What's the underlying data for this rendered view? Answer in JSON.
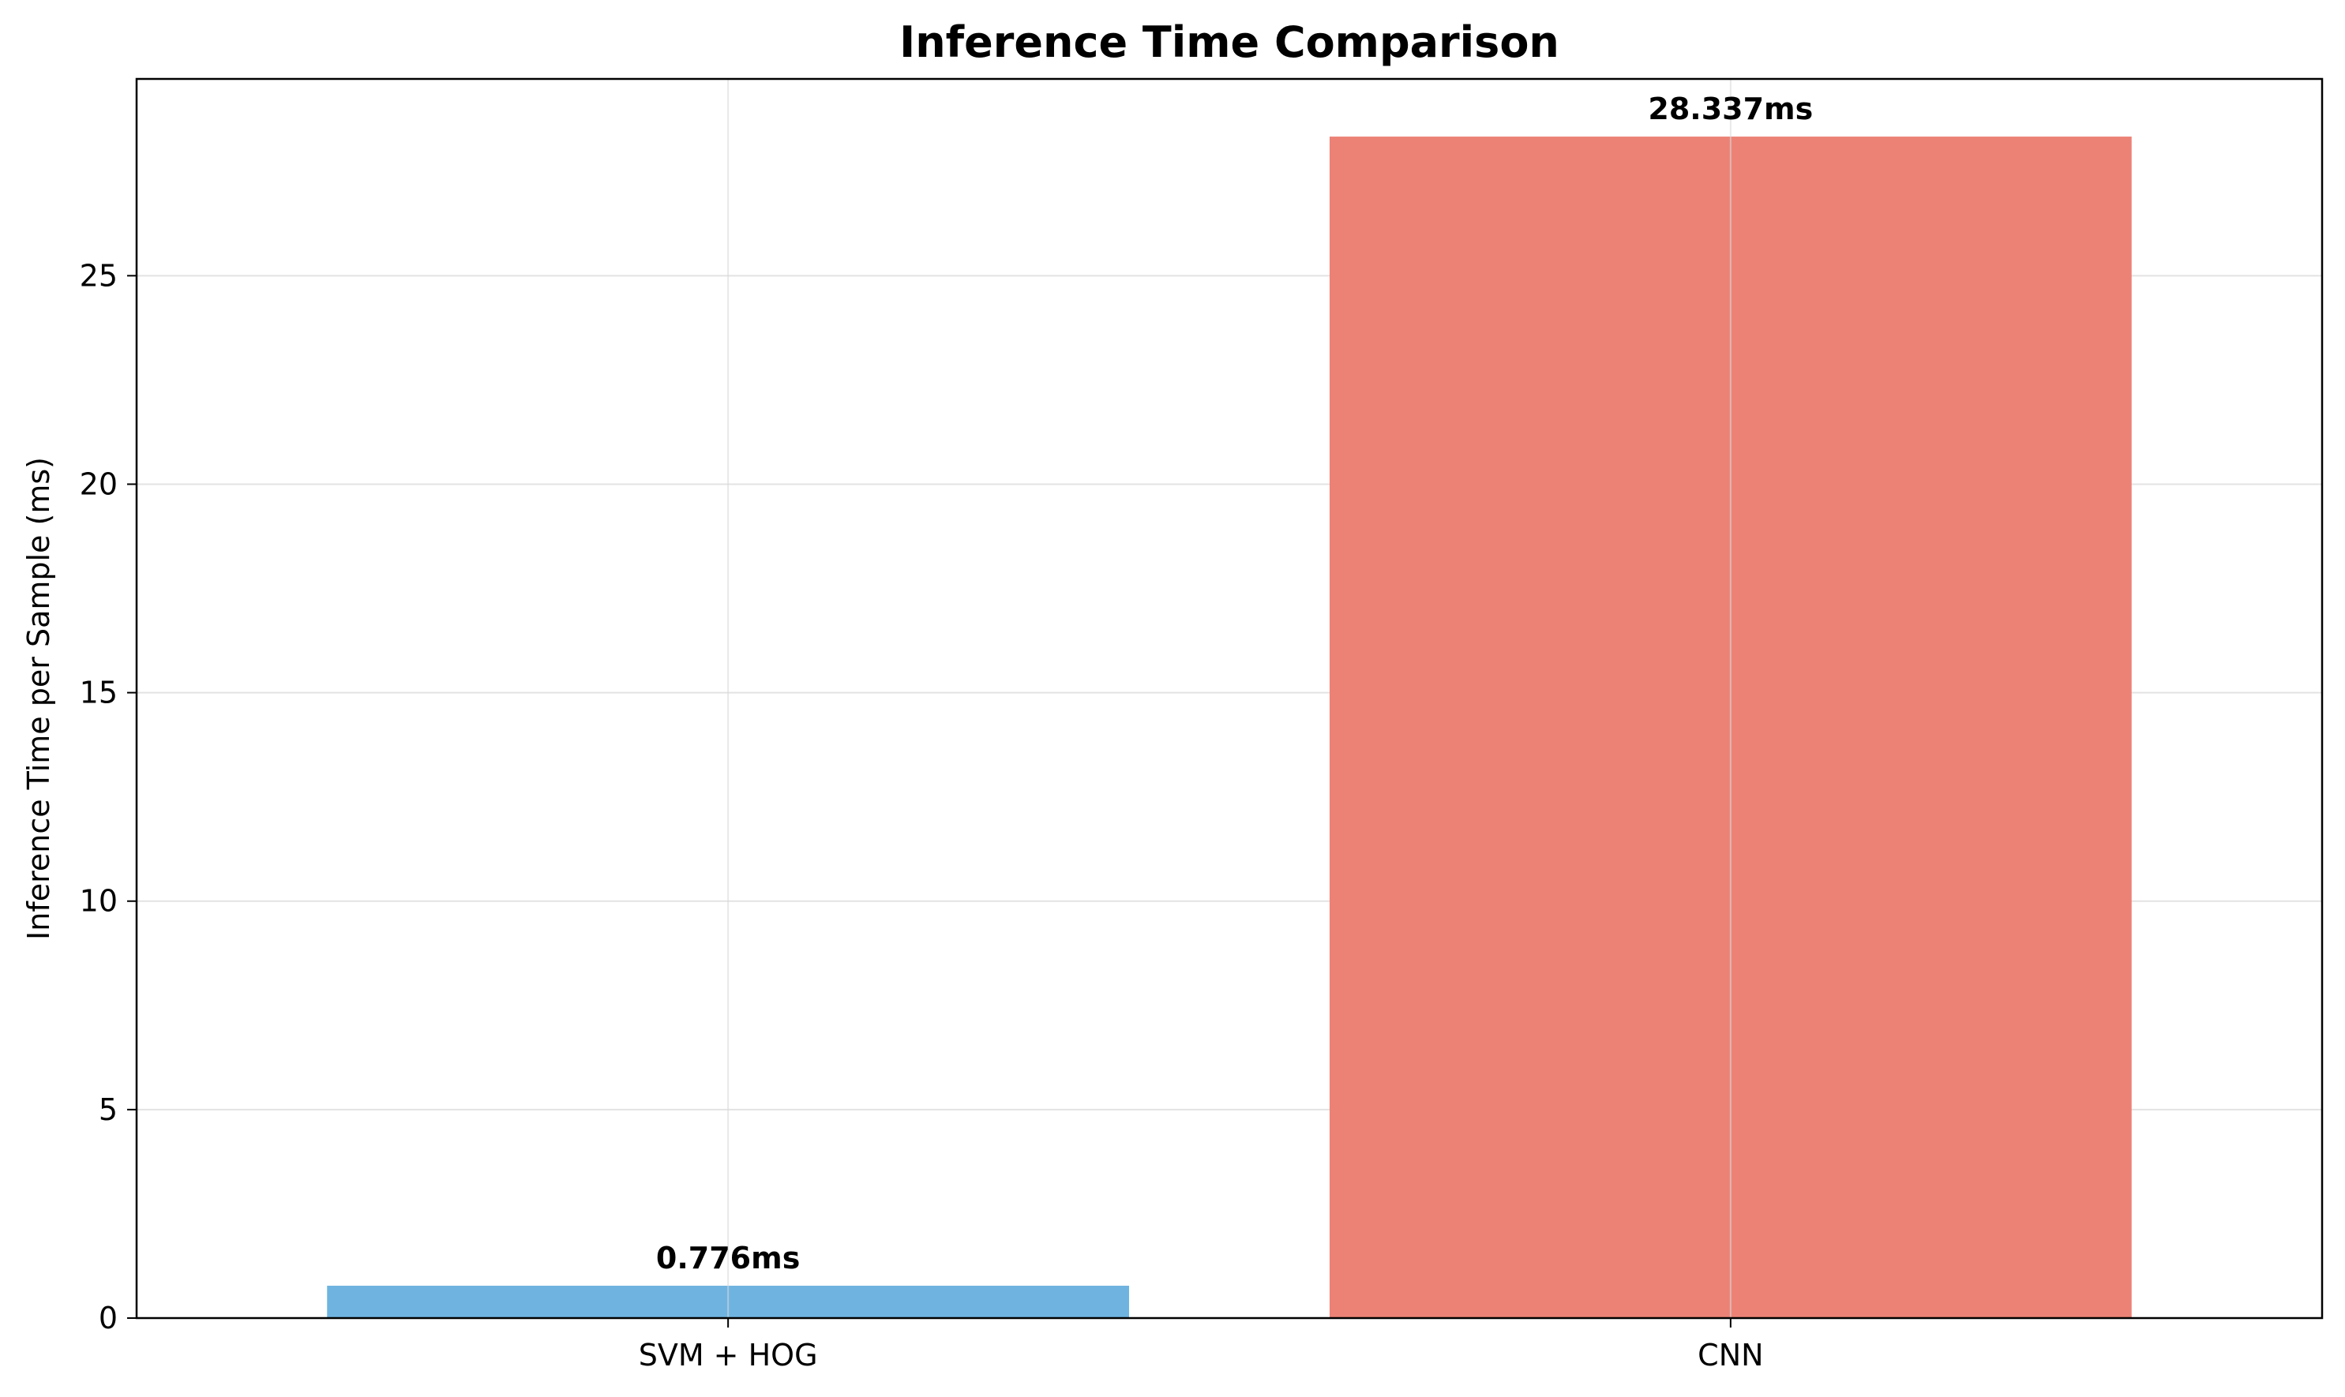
{
  "chart_data": {
    "type": "bar",
    "title": "Inference Time Comparison",
    "xlabel": "",
    "ylabel": "Inference Time per Sample (ms)",
    "categories": [
      "SVM + HOG",
      "CNN"
    ],
    "values": [
      0.776,
      28.337
    ],
    "data_labels": [
      "0.776ms",
      "28.337ms"
    ],
    "colors": [
      "#6fb4e0",
      "#ec8276"
    ],
    "ylim": [
      0,
      29.72
    ],
    "yticks": [
      0,
      5,
      10,
      15,
      20,
      25
    ],
    "ytick_labels": [
      "0",
      "5",
      "10",
      "15",
      "20",
      "25"
    ],
    "grid": true,
    "legend": "none"
  }
}
